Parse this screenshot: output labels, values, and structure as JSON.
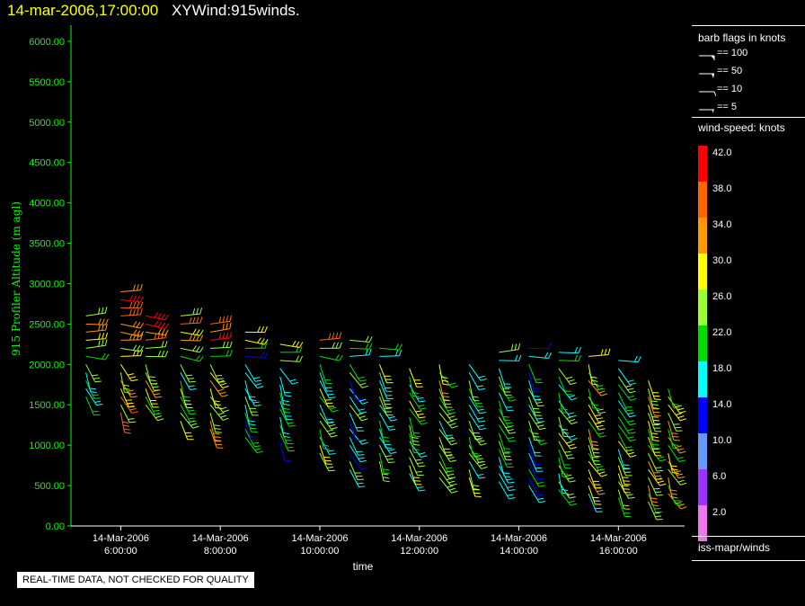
{
  "header": {
    "datetime": "14-mar-2006,17:00:00",
    "plot_title": "XYWind:915winds."
  },
  "chart_data": {
    "type": "wind-barb",
    "ylabel": "915 Profiler Altitude (m agl)",
    "xlabel": "time",
    "ylim": [
      0,
      6200
    ],
    "yticks": [
      "0.00",
      "500.00",
      "1000.00",
      "1500.00",
      "2000.00",
      "2500.00",
      "3000.00",
      "3500.00",
      "4000.00",
      "4500.00",
      "5000.00",
      "5500.00",
      "6000.00"
    ],
    "xlim_hours": [
      5.0,
      17.33
    ],
    "xticks": [
      {
        "date": "14-Mar-2006",
        "time": "6:00:00",
        "hour": 6
      },
      {
        "date": "14-Mar-2006",
        "time": "8:00:00",
        "hour": 8
      },
      {
        "date": "14-Mar-2006",
        "time": "10:00:00",
        "hour": 10
      },
      {
        "date": "14-Mar-2006",
        "time": "12:00:00",
        "hour": 12
      },
      {
        "date": "14-Mar-2006",
        "time": "14:00:00",
        "hour": 14
      },
      {
        "date": "14-Mar-2006",
        "time": "16:00:00",
        "hour": 16
      }
    ],
    "profiles": [
      {
        "hour": 5.3,
        "alt_range": [
          1600,
          2650
        ],
        "speed": 24
      },
      {
        "hour": 6.0,
        "alt_range": [
          1400,
          2900
        ],
        "speed": 30
      },
      {
        "hour": 6.5,
        "alt_range": [
          1500,
          2600
        ],
        "speed": 28
      },
      {
        "hour": 7.2,
        "alt_range": [
          1300,
          2600
        ],
        "speed": 26
      },
      {
        "hour": 7.8,
        "alt_range": [
          1200,
          2500
        ],
        "speed": 30
      },
      {
        "hour": 8.5,
        "alt_range": [
          1100,
          2400
        ],
        "speed": 22
      },
      {
        "hour": 9.2,
        "alt_range": [
          1050,
          2300
        ],
        "speed": 18
      },
      {
        "hour": 10.0,
        "alt_range": [
          900,
          2350
        ],
        "speed": 24
      },
      {
        "hour": 10.6,
        "alt_range": [
          700,
          2300
        ],
        "speed": 20
      },
      {
        "hour": 11.2,
        "alt_range": [
          800,
          2200
        ],
        "speed": 22
      },
      {
        "hour": 11.8,
        "alt_range": [
          650,
          2000
        ],
        "speed": 24
      },
      {
        "hour": 12.4,
        "alt_range": [
          600,
          2000
        ],
        "speed": 26
      },
      {
        "hour": 13.0,
        "alt_range": [
          600,
          2050
        ],
        "speed": 24
      },
      {
        "hour": 13.6,
        "alt_range": [
          550,
          2150
        ],
        "speed": 22
      },
      {
        "hour": 14.2,
        "alt_range": [
          500,
          2200
        ],
        "speed": 20
      },
      {
        "hour": 14.8,
        "alt_range": [
          450,
          2150
        ],
        "speed": 24
      },
      {
        "hour": 15.4,
        "alt_range": [
          400,
          2100
        ],
        "speed": 26
      },
      {
        "hour": 16.0,
        "alt_range": [
          350,
          2050
        ],
        "speed": 24
      },
      {
        "hour": 16.6,
        "alt_range": [
          300,
          1850
        ],
        "speed": 28
      },
      {
        "hour": 17.0,
        "alt_range": [
          400,
          1700
        ],
        "speed": 28
      }
    ]
  },
  "legend": {
    "barb_title": "barb flags in knots",
    "barb_flags": [
      "== 100",
      "== 50",
      "== 10",
      "== 5"
    ],
    "colorbar_title": "wind-speed: knots",
    "colorbar": [
      {
        "label": "42.0",
        "color": "#ff0000"
      },
      {
        "label": "38.0",
        "color": "#ff6600"
      },
      {
        "label": "34.0",
        "color": "#ff9900"
      },
      {
        "label": "30.0",
        "color": "#ffff00"
      },
      {
        "label": "26.0",
        "color": "#99ff33"
      },
      {
        "label": "22.0",
        "color": "#00dd00"
      },
      {
        "label": "18.0",
        "color": "#00ffff"
      },
      {
        "label": "14.0",
        "color": "#0000ff"
      },
      {
        "label": "10.0",
        "color": "#6699ff"
      },
      {
        "label": "6.0",
        "color": "#9933ff"
      },
      {
        "label": "2.0",
        "color": "#ee77ee"
      }
    ],
    "source": "iss-mapr/winds"
  },
  "disclaimer": "REAL-TIME DATA, NOT CHECKED FOR QUALITY",
  "colors": {
    "axis": "#00ff00",
    "background": "#000000",
    "title_time": "#ffff00"
  }
}
